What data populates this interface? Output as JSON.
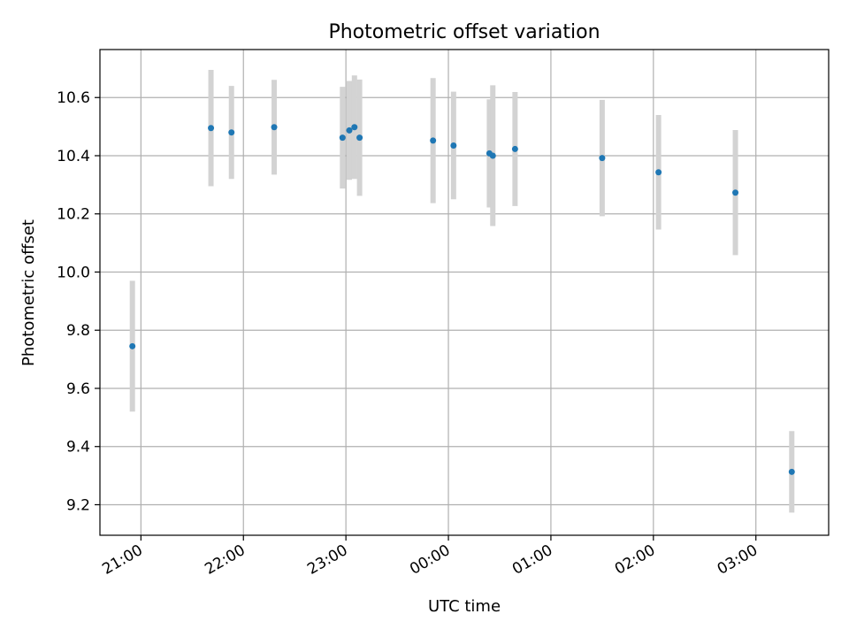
{
  "chart_data": {
    "type": "scatter",
    "title": "Photometric offset variation",
    "xlabel": "UTC time",
    "ylabel": "Photometric offset",
    "x_tick_labels": [
      "21:00",
      "22:00",
      "23:00",
      "00:00",
      "01:00",
      "02:00",
      "03:00"
    ],
    "x_ticks_hours": [
      21,
      22,
      23,
      24,
      25,
      26,
      27
    ],
    "y_ticks": [
      9.2,
      9.4,
      9.6,
      9.8,
      10.0,
      10.2,
      10.4,
      10.6
    ],
    "y_tick_labels": [
      "9.2",
      "9.4",
      "9.6",
      "9.8",
      "10.0",
      "10.2",
      "10.4",
      "10.6"
    ],
    "xlim_hours": [
      20.6,
      27.71
    ],
    "ylim": [
      9.095,
      10.765
    ],
    "grid": true,
    "error_bar_color": "#d3d3d3",
    "point_color": "#1f77b4",
    "points": [
      {
        "time": "20:55",
        "y": 9.745,
        "err": 0.225
      },
      {
        "time": "21:41",
        "y": 10.495,
        "err": 0.2
      },
      {
        "time": "21:53",
        "y": 10.48,
        "err": 0.16
      },
      {
        "time": "22:18",
        "y": 10.498,
        "err": 0.163
      },
      {
        "time": "22:58",
        "y": 10.462,
        "err": 0.175
      },
      {
        "time": "23:02",
        "y": 10.487,
        "err": 0.17
      },
      {
        "time": "23:05",
        "y": 10.498,
        "err": 0.178
      },
      {
        "time": "23:08",
        "y": 10.462,
        "err": 0.2
      },
      {
        "time": "23:51",
        "y": 10.452,
        "err": 0.215
      },
      {
        "time": "00:03",
        "y": 10.435,
        "err": 0.185
      },
      {
        "time": "00:24",
        "y": 10.408,
        "err": 0.186
      },
      {
        "time": "00:26",
        "y": 10.4,
        "err": 0.242
      },
      {
        "time": "00:39",
        "y": 10.423,
        "err": 0.196
      },
      {
        "time": "01:30",
        "y": 10.392,
        "err": 0.2
      },
      {
        "time": "02:03",
        "y": 10.343,
        "err": 0.197
      },
      {
        "time": "02:48",
        "y": 10.273,
        "err": 0.215
      },
      {
        "time": "03:21",
        "y": 9.313,
        "err": 0.14
      }
    ]
  }
}
